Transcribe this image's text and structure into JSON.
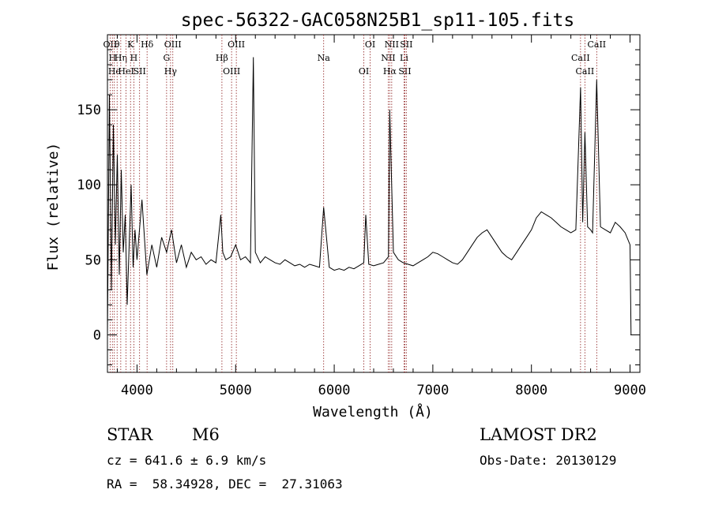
{
  "chart_data": {
    "type": "line",
    "title": "spec-56322-GAC058N25B1_sp11-105.fits",
    "xlabel": "Wavelength (Å)",
    "ylabel": "Flux (relative)",
    "xlim": [
      3700,
      9100
    ],
    "ylim": [
      -25,
      200
    ],
    "xticks": [
      4000,
      5000,
      6000,
      7000,
      8000,
      9000
    ],
    "yticks": [
      0,
      50,
      100,
      150
    ],
    "line_color": "#000000",
    "marker_color": "#8b1a1a",
    "series": [
      {
        "x": [
          3700,
          3720,
          3740,
          3760,
          3780,
          3800,
          3820,
          3840,
          3860,
          3880,
          3900,
          3920,
          3940,
          3960,
          3980,
          4000,
          4050,
          4100,
          4150,
          4200,
          4250,
          4300,
          4350,
          4400,
          4450,
          4500,
          4550,
          4600,
          4650,
          4700,
          4750,
          4800,
          4850,
          4870,
          4900,
          4950,
          5000,
          5050,
          5100,
          5150,
          5180,
          5200,
          5250,
          5300,
          5350,
          5400,
          5450,
          5500,
          5550,
          5600,
          5650,
          5700,
          5750,
          5800,
          5850,
          5893,
          5950,
          6000,
          6050,
          6100,
          6150,
          6200,
          6250,
          6300,
          6320,
          6350,
          6400,
          6450,
          6500,
          6550,
          6563,
          6600,
          6650,
          6700,
          6750,
          6800,
          6850,
          6900,
          6950,
          7000,
          7050,
          7100,
          7150,
          7200,
          7250,
          7300,
          7350,
          7400,
          7450,
          7500,
          7550,
          7600,
          7650,
          7700,
          7750,
          7800,
          7850,
          7900,
          7950,
          8000,
          8050,
          8100,
          8150,
          8200,
          8250,
          8300,
          8350,
          8400,
          8450,
          8498,
          8520,
          8542,
          8570,
          8600,
          8620,
          8662,
          8700,
          8750,
          8800,
          8850,
          8900,
          8950,
          9000,
          9010
        ],
        "y": [
          0,
          160,
          30,
          140,
          60,
          120,
          40,
          110,
          55,
          80,
          20,
          60,
          100,
          45,
          70,
          50,
          90,
          40,
          60,
          45,
          65,
          55,
          70,
          48,
          60,
          45,
          55,
          50,
          52,
          47,
          50,
          48,
          80,
          55,
          50,
          52,
          60,
          50,
          52,
          48,
          185,
          55,
          48,
          52,
          50,
          48,
          47,
          50,
          48,
          46,
          47,
          45,
          47,
          46,
          45,
          85,
          45,
          43,
          44,
          43,
          45,
          44,
          46,
          48,
          80,
          47,
          46,
          47,
          48,
          52,
          150,
          55,
          50,
          48,
          47,
          46,
          48,
          50,
          52,
          55,
          54,
          52,
          50,
          48,
          47,
          50,
          55,
          60,
          65,
          68,
          70,
          65,
          60,
          55,
          52,
          50,
          55,
          60,
          65,
          70,
          78,
          82,
          80,
          78,
          75,
          72,
          70,
          68,
          70,
          165,
          75,
          135,
          72,
          70,
          68,
          170,
          72,
          70,
          68,
          75,
          72,
          68,
          60,
          0
        ]
      }
    ],
    "lines": [
      {
        "wavelength": 3727,
        "labels": [
          "OII"
        ]
      },
      {
        "wavelength": 3750,
        "labels": [
          "H"
        ]
      },
      {
        "wavelength": 3770,
        "labels": [
          "Hϵ"
        ]
      },
      {
        "wavelength": 3798,
        "labels": [
          "θ"
        ]
      },
      {
        "wavelength": 3835,
        "labels": [
          "Hη"
        ]
      },
      {
        "wavelength": 3889,
        "labels": [
          "HeI"
        ]
      },
      {
        "wavelength": 3934,
        "labels": [
          "K"
        ]
      },
      {
        "wavelength": 3968,
        "labels": [
          "H"
        ]
      },
      {
        "wavelength": 4026,
        "labels": [
          "SII"
        ]
      },
      {
        "wavelength": 4102,
        "labels": [
          "Hδ"
        ]
      },
      {
        "wavelength": 4300,
        "labels": [
          "G"
        ]
      },
      {
        "wavelength": 4340,
        "labels": [
          "Hγ"
        ]
      },
      {
        "wavelength": 4363,
        "labels": [
          "OIII"
        ]
      },
      {
        "wavelength": 4861,
        "labels": [
          "Hβ"
        ]
      },
      {
        "wavelength": 4959,
        "labels": [
          "OIII"
        ]
      },
      {
        "wavelength": 5007,
        "labels": [
          "OIII"
        ]
      },
      {
        "wavelength": 5893,
        "labels": [
          "Na"
        ]
      },
      {
        "wavelength": 6300,
        "labels": [
          "OI"
        ]
      },
      {
        "wavelength": 6364,
        "labels": [
          "OI"
        ]
      },
      {
        "wavelength": 6548,
        "labels": [
          "NII"
        ]
      },
      {
        "wavelength": 6563,
        "labels": [
          "Hα"
        ]
      },
      {
        "wavelength": 6583,
        "labels": [
          "NII"
        ]
      },
      {
        "wavelength": 6708,
        "labels": [
          "Li"
        ]
      },
      {
        "wavelength": 6716,
        "labels": [
          "SII"
        ]
      },
      {
        "wavelength": 6731,
        "labels": [
          "SII"
        ]
      },
      {
        "wavelength": 8498,
        "labels": [
          "CaII"
        ]
      },
      {
        "wavelength": 8542,
        "labels": [
          "CaII"
        ]
      },
      {
        "wavelength": 8662,
        "labels": [
          "CaII"
        ]
      }
    ]
  },
  "info": {
    "class_label": "STAR",
    "subclass": "M6",
    "cz": "cz = 641.6 ± 6.9 km/s",
    "coords": "RA =  58.34928, DEC =  27.31063",
    "survey": "LAMOST DR2",
    "obs_date": "Obs-Date: 20130129"
  }
}
